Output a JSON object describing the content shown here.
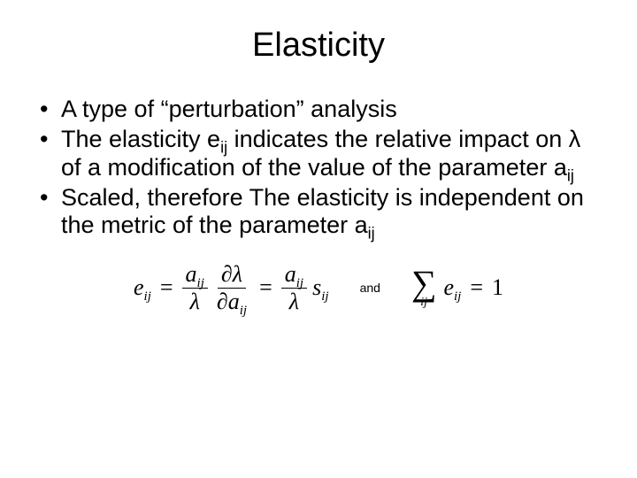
{
  "title": "Elasticity",
  "bullets": {
    "b1": "A type of “perturbation” analysis",
    "b2_pre": "The elasticity e",
    "b2_sub1": "ij",
    "b2_mid": " indicates the relative impact on λ of a modification of the value of the parameter a",
    "b2_sub2": "ij",
    "b3_pre": "Scaled, therefore The elasticity is independent on the metric of the parameter a",
    "b3_sub": "ij"
  },
  "formula": {
    "e": "e",
    "ij": "ij",
    "a": "a",
    "lambda": "λ",
    "partial": "∂",
    "s": "s",
    "equals": "=",
    "one": "1",
    "and": "and",
    "sigma": "∑"
  },
  "style": {
    "text_color": "#000000",
    "background": "#ffffff",
    "title_fontsize": 38,
    "body_fontsize": 27,
    "formula_fontsize": 26
  }
}
